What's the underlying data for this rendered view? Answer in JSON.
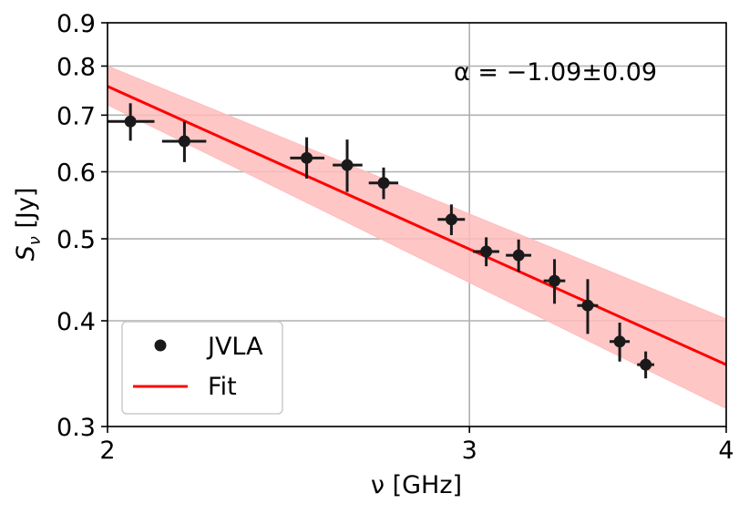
{
  "chart_data": {
    "type": "scatter",
    "title": "",
    "xlabel": "ν [GHz]",
    "ylabel": "S_ν [Jy]",
    "x_scale": "log",
    "y_scale": "log",
    "xlim": [
      2,
      4
    ],
    "ylim": [
      0.3,
      0.9
    ],
    "x_ticks": [
      2,
      3,
      4
    ],
    "x_tick_labels": [
      "2",
      "3",
      "4"
    ],
    "y_ticks": [
      0.3,
      0.4,
      0.5,
      0.6,
      0.7,
      0.8,
      0.9
    ],
    "y_tick_labels": [
      "0.3",
      "0.4",
      "0.5",
      "0.6",
      "0.7",
      "0.8",
      "0.9"
    ],
    "grid": true,
    "annotation": "α = −1.09±0.09",
    "legend": {
      "placement": "bottom-left",
      "entries": [
        {
          "label": "JVLA",
          "marker": "circle",
          "color": "#1a1a1a"
        },
        {
          "label": "Fit",
          "marker": "line",
          "color": "#ff0000"
        }
      ]
    },
    "series": [
      {
        "name": "JVLA",
        "color": "#1a1a1a",
        "points": [
          {
            "x": 2.052,
            "y": 0.688,
            "xerr": [
              0.052,
              0.056
            ],
            "yerr": [
              0.035,
              0.035
            ]
          },
          {
            "x": 2.18,
            "y": 0.652,
            "xerr": [
              0.054,
              0.054
            ],
            "yerr": [
              0.036,
              0.036
            ]
          },
          {
            "x": 2.5,
            "y": 0.623,
            "xerr": [
              0.046,
              0.05
            ],
            "yerr": [
              0.034,
              0.036
            ]
          },
          {
            "x": 2.616,
            "y": 0.611,
            "xerr": [
              0.042,
              0.045
            ],
            "yerr": [
              0.043,
              0.044
            ]
          },
          {
            "x": 2.725,
            "y": 0.582,
            "xerr": [
              0.045,
              0.045
            ],
            "yerr": [
              0.025,
              0.025
            ]
          },
          {
            "x": 2.94,
            "y": 0.527,
            "xerr": [
              0.045,
              0.045
            ],
            "yerr": [
              0.022,
              0.022
            ]
          },
          {
            "x": 3.057,
            "y": 0.483,
            "xerr": [
              0.045,
              0.045
            ],
            "yerr": [
              0.019,
              0.019
            ]
          },
          {
            "x": 3.17,
            "y": 0.478,
            "xerr": [
              0.045,
              0.045
            ],
            "yerr": [
              0.021,
              0.021
            ]
          },
          {
            "x": 3.3,
            "y": 0.446,
            "xerr": [
              0.04,
              0.04
            ],
            "yerr": [
              0.027,
              0.027
            ]
          },
          {
            "x": 3.425,
            "y": 0.417,
            "xerr": [
              0.04,
              0.04
            ],
            "yerr": [
              0.031,
              0.031
            ]
          },
          {
            "x": 3.55,
            "y": 0.378,
            "xerr": [
              0.04,
              0.04
            ],
            "yerr": [
              0.02,
              0.02
            ]
          },
          {
            "x": 3.655,
            "y": 0.355,
            "xerr": [
              0.035,
              0.035
            ],
            "yerr": [
              0.013,
              0.013
            ]
          }
        ]
      }
    ],
    "fit": {
      "name": "Fit",
      "color": "#ff0000",
      "line": [
        {
          "x": 2.0,
          "y": 0.757
        },
        {
          "x": 4.0,
          "y": 0.355
        }
      ],
      "band_lower": [
        {
          "x": 2.0,
          "y": 0.72
        },
        {
          "x": 4.0,
          "y": 0.315
        }
      ],
      "band_upper": [
        {
          "x": 2.0,
          "y": 0.8
        },
        {
          "x": 4.0,
          "y": 0.402
        }
      ],
      "band_color": "#ffbcbc"
    }
  }
}
